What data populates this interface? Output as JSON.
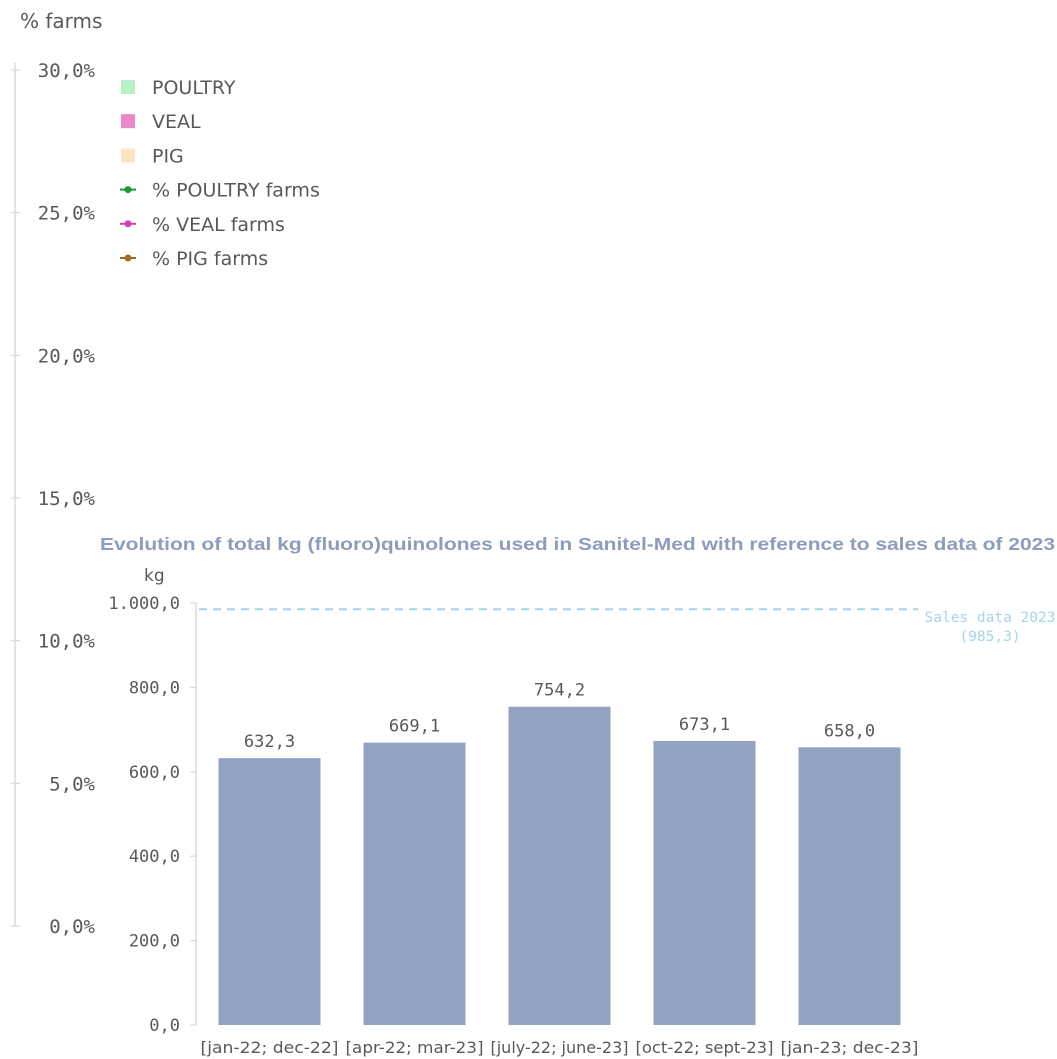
{
  "chart_data": [
    {
      "type": "line",
      "ylabel": "% farms",
      "yticks": [
        "30,0%",
        "25,0%",
        "20,0%",
        "15,0%",
        "10,0%",
        "5,0%",
        "0,0%"
      ],
      "ylim": [
        0,
        30
      ],
      "legend_position": "top-left",
      "legend": [
        {
          "label": "POULTRY",
          "kind": "square",
          "color": "#b8f0c8"
        },
        {
          "label": "VEAL",
          "kind": "square",
          "color": "#ec87c8"
        },
        {
          "label": "PIG",
          "kind": "square",
          "color": "#fde4c4"
        },
        {
          "label": "% POULTRY farms",
          "kind": "line",
          "color": "#1e9a3c"
        },
        {
          "label": "% VEAL farms",
          "kind": "line",
          "color": "#d93fb4"
        },
        {
          "label": "% PIG farms",
          "kind": "line",
          "color": "#a86a2a"
        }
      ]
    },
    {
      "type": "bar",
      "title": "Evolution of total kg (fluoro)quinolones used in Sanitel-Med with reference to sales data of 2023",
      "ylabel": "kg",
      "ylim": [
        0,
        1000
      ],
      "yticks": [
        "0,0",
        "200,0",
        "400,0",
        "600,0",
        "800,0",
        "1.000,0"
      ],
      "categories": [
        "[jan-22; dec-22]",
        "[apr-22; mar-23]",
        "[july-22; june-23]",
        "[oct-22; sept-23]",
        "[jan-23; dec-23]"
      ],
      "values": [
        632.3,
        669.1,
        754.2,
        673.1,
        658.0
      ],
      "value_labels": [
        "632,3",
        "669,1",
        "754,2",
        "673,1",
        "658,0"
      ],
      "bar_color": "#93a1c2",
      "reference_line": {
        "value": 985.3,
        "label_line1": "Sales data 2023",
        "label_line2": "(985,3)",
        "color": "#a7d3ee"
      },
      "title_color": "#8e9cbc"
    }
  ]
}
